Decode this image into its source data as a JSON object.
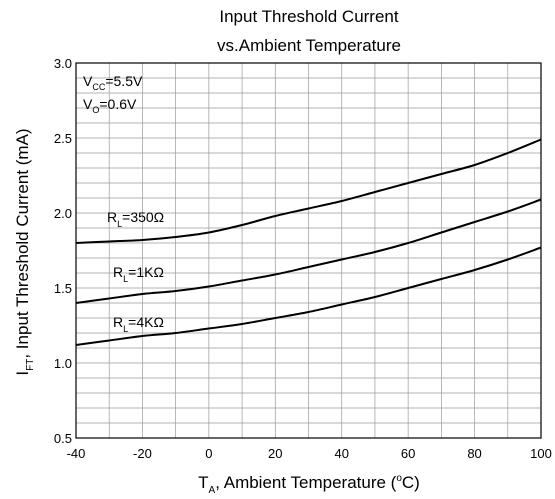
{
  "chart_data": {
    "type": "line",
    "title": [
      "Input Threshold Current",
      "vs.Ambient Temperature"
    ],
    "xlabel": {
      "main": "T",
      "sub": "A",
      "rest": ", Ambient Temperature (",
      "sup": "o",
      "end": "C)"
    },
    "ylabel": {
      "main": "I",
      "sub": "FT",
      "rest": ", Input Threshold Current (mA)"
    },
    "xlim": [
      -40,
      100
    ],
    "ylim": [
      0.5,
      3.0
    ],
    "xticks": [
      -40,
      -20,
      0,
      20,
      40,
      60,
      80,
      100
    ],
    "yticks": [
      0.5,
      1.0,
      1.5,
      2.0,
      2.5,
      3.0
    ],
    "xtick_labels": [
      "-40",
      "-20",
      "0",
      "20",
      "40",
      "60",
      "80",
      "100"
    ],
    "ytick_labels": [
      "0.5",
      "1.0",
      "1.5",
      "2.0",
      "2.5",
      "3.0"
    ],
    "grid": true,
    "conditions": [
      {
        "main": "V",
        "sub": "CC",
        "rest": "=5.5V"
      },
      {
        "main": "V",
        "sub": "O",
        "rest": "=0.6V"
      }
    ],
    "x": [
      -40,
      -30,
      -20,
      -10,
      0,
      10,
      20,
      30,
      40,
      50,
      60,
      70,
      80,
      90,
      100
    ],
    "series": [
      {
        "label": {
          "main": "R",
          "sub": "L",
          "rest": "=350Ω"
        },
        "values": [
          1.8,
          1.81,
          1.82,
          1.84,
          1.87,
          1.92,
          1.98,
          2.03,
          2.08,
          2.14,
          2.2,
          2.26,
          2.32,
          2.4,
          2.49
        ]
      },
      {
        "label": {
          "main": "R",
          "sub": "L",
          "rest": "=1KΩ"
        },
        "values": [
          1.4,
          1.43,
          1.46,
          1.48,
          1.51,
          1.55,
          1.59,
          1.64,
          1.69,
          1.74,
          1.8,
          1.87,
          1.94,
          2.01,
          2.09
        ]
      },
      {
        "label": {
          "main": "R",
          "sub": "L",
          "rest": "=4KΩ"
        },
        "values": [
          1.12,
          1.15,
          1.18,
          1.2,
          1.23,
          1.26,
          1.3,
          1.34,
          1.39,
          1.44,
          1.5,
          1.56,
          1.62,
          1.69,
          1.77
        ]
      }
    ]
  }
}
